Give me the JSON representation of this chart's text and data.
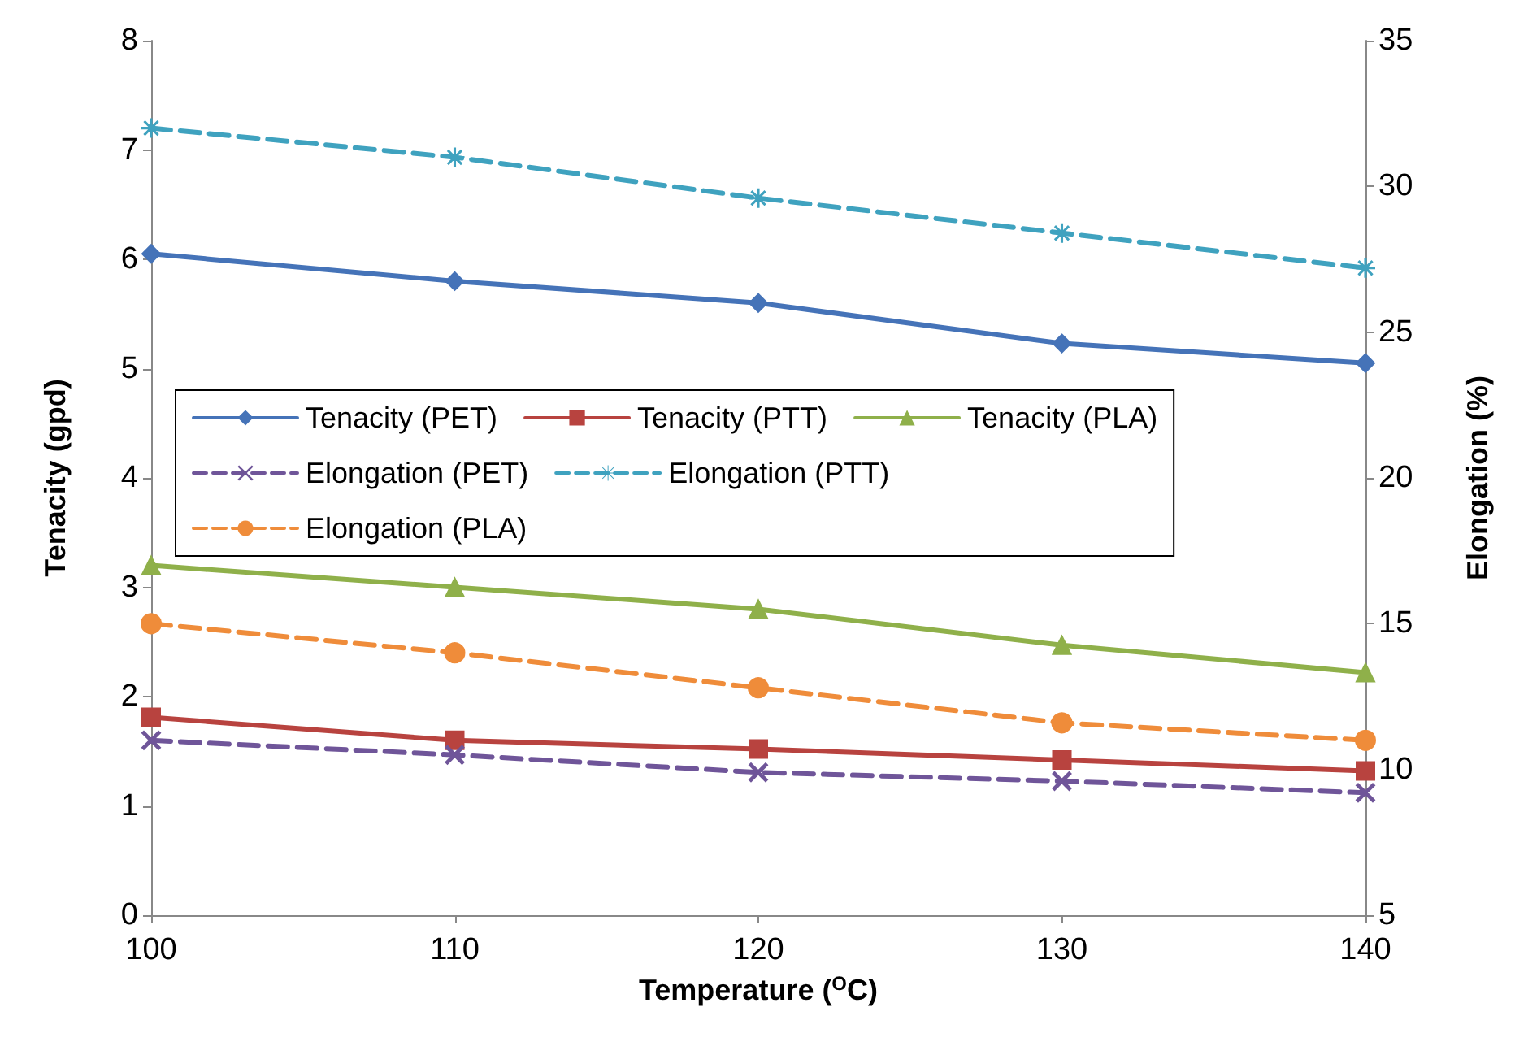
{
  "chart_data": {
    "type": "line",
    "xlabel": "Temperature ($^{O}$C)",
    "ylabel": "Tenacity (gpd)",
    "y2label": "Elongation (%)",
    "x": [
      100,
      110,
      120,
      130,
      140
    ],
    "xlim": [
      100,
      140
    ],
    "xticks": [
      100,
      110,
      120,
      130,
      140
    ],
    "ylim": [
      0,
      8
    ],
    "yticks": [
      0,
      1,
      2,
      3,
      4,
      5,
      6,
      7,
      8
    ],
    "y2lim": [
      5,
      35
    ],
    "y2ticks": [
      5,
      10,
      15,
      20,
      25,
      30,
      35
    ],
    "grid": false,
    "legend": "left",
    "series": [
      {
        "name": "Tenacity (PET)",
        "color": "#4573b8",
        "marker": "diamond",
        "line_style": "solid",
        "values": [
          6.05,
          5.8,
          5.6,
          5.23,
          5.05
        ]
      },
      {
        "name": "Tenacity (PTT)",
        "color": "#b8433f",
        "marker": "square",
        "line_style": "solid",
        "values": [
          1.81,
          1.6,
          1.52,
          1.42,
          1.32
        ]
      },
      {
        "name": "Tenacity (PLA)",
        "color": "#8fb04a",
        "marker": "triangle",
        "line_style": "solid",
        "values": [
          3.2,
          3.0,
          2.8,
          2.47,
          2.22
        ]
      },
      {
        "name": "Elongation (PET)",
        "color": "#6f5599",
        "marker": "cross",
        "line_style": "dashed",
        "axis": "y2",
        "values": [
          11,
          10.5,
          9.9,
          9.6,
          9.2
        ]
      },
      {
        "name": "Elongation (PTT)",
        "color": "#3fa2bf",
        "marker": "star",
        "line_style": "dashed",
        "axis": "y2",
        "values": [
          32,
          31,
          29.6,
          28.4,
          27.2
        ]
      },
      {
        "name": "Elongation (PLA)",
        "color": "#ef8c3a",
        "marker": "circle",
        "line_style": "dashed",
        "axis": "y2",
        "values": [
          15,
          14,
          12.8,
          11.6,
          11
        ]
      }
    ]
  }
}
